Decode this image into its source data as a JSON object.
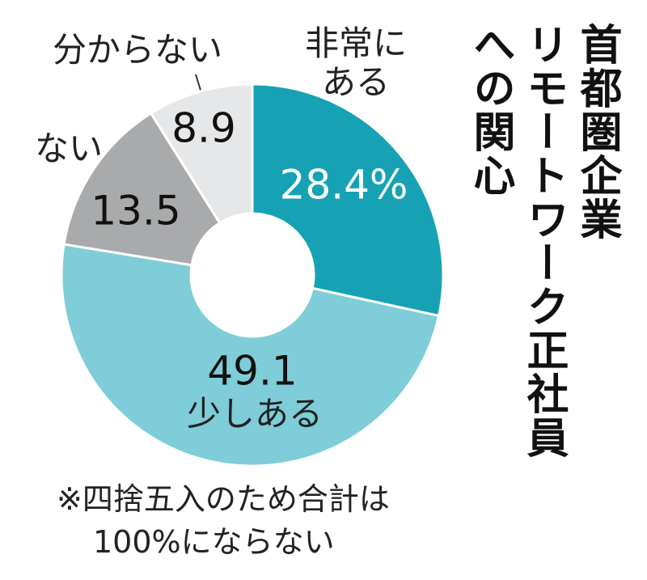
{
  "chart_data": {
    "type": "donut",
    "title": [
      "首都圏企業",
      "リモートワーク正社員",
      "への関心"
    ],
    "categories": [
      "非常にある",
      "少しある",
      "ない",
      "分からない"
    ],
    "values": [
      28.4,
      49.1,
      13.5,
      8.9
    ],
    "value_labels": [
      "28.4%",
      "49.1",
      "13.5",
      "8.9"
    ],
    "colors": [
      "#16a2b4",
      "#7ecdd8",
      "#a9aaac",
      "#e6e7e9"
    ],
    "note": [
      "※四捨五入のため合計は",
      "100%にならない"
    ]
  }
}
